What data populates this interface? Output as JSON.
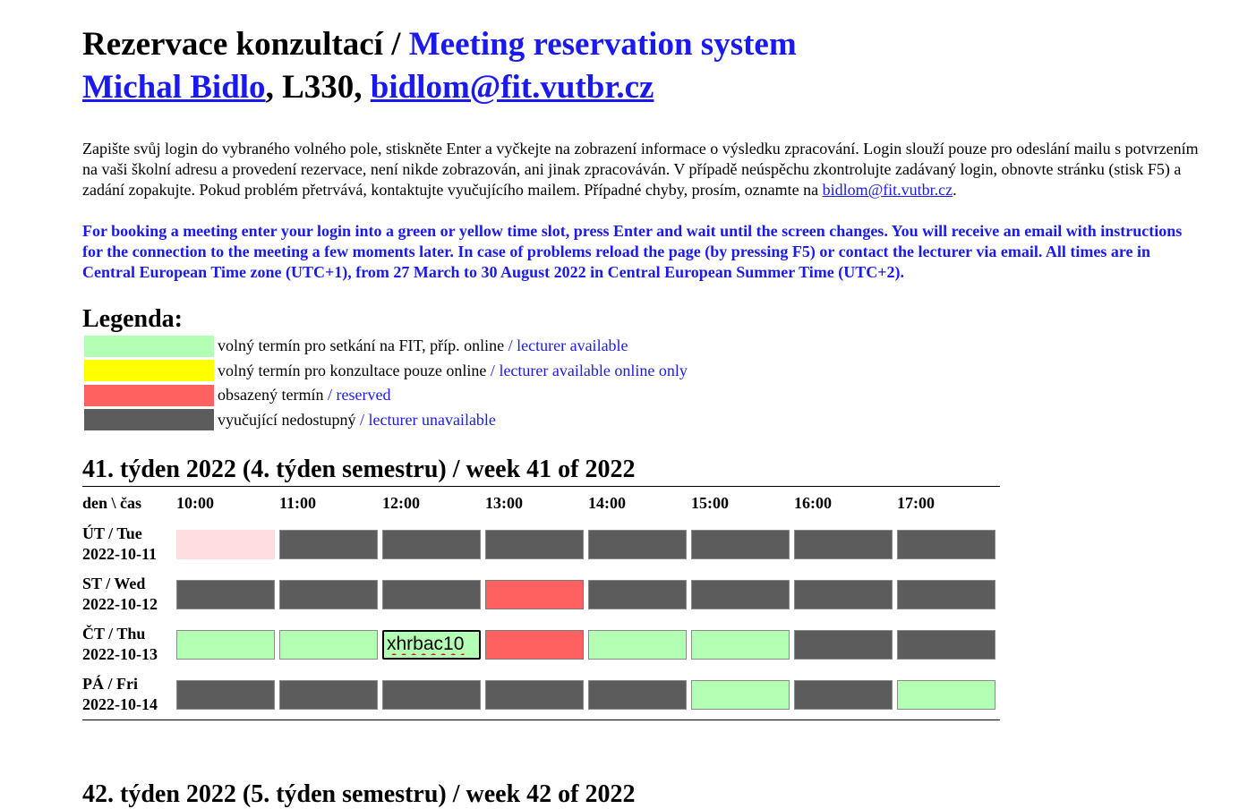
{
  "header": {
    "title_cs": "Rezervace konzultací /",
    "title_en": "Meeting reservation system",
    "name": "Michal Bidlo",
    "office": ", L330, ",
    "email": "bidlom@fit.vutbr.cz"
  },
  "intro": {
    "text_cs": "Zapište svůj login do vybraného volného pole, stiskněte Enter a vyčkejte na zobrazení informace o výsledku zpracování. Login slouží pouze pro odeslání mailu s potvrzením na vaši školní adresu a provedení rezervace, není nikde zobrazován, ani jinak zpracováván. V případě neúspěchu zkontrolujte zadávaný login, obnovte stránku (stisk F5) a zadání zopakujte. Pokud problém přetrvává, kontaktujte vyučujícího mailem. Případné chyby, prosím, oznamte na ",
    "email": "bidlom@fit.vutbr.cz",
    "after_email": ".",
    "text_en": "For booking a meeting enter your login into a green or yellow time slot, press Enter and wait until the screen changes. You will receive an email with instructions for the connection to the meeting a few moments later. In case of problems reload the page (by pressing F5) or contact the lecturer via email. All times are in Central European Time zone (UTC+1), from 27 March to 30 August 2022 in Central European Summer Time (UTC+2)."
  },
  "legend": {
    "title": "Legenda:",
    "items": [
      {
        "cs": "volný termín pro setkání na FIT, příp. online",
        "en": "lecturer available",
        "color": "#b3ffb3"
      },
      {
        "cs": "volný termín pro konzultace pouze online",
        "en": "lecturer available online only",
        "color": "#ffff00"
      },
      {
        "cs": "obsazený termín",
        "en": "reserved",
        "color": "#ff6060"
      },
      {
        "cs": "vyučující nedostupný",
        "en": "lecturer unavailable",
        "color": "#5c5c5c"
      }
    ],
    "separator": " / "
  },
  "week": {
    "title": "41. týden 2022 (4. týden semestru) / week 41 of 2022",
    "corner": "den \\ čas",
    "times": [
      "10:00",
      "11:00",
      "12:00",
      "13:00",
      "14:00",
      "15:00",
      "16:00",
      "17:00"
    ],
    "days": [
      {
        "name": "ÚT / Tue",
        "date": "2022-10-11",
        "slots": [
          "pink",
          "na",
          "na",
          "na",
          "na",
          "na",
          "na",
          "na"
        ]
      },
      {
        "name": "ST / Wed",
        "date": "2022-10-12",
        "slots": [
          "na",
          "na",
          "na",
          "res",
          "na",
          "na",
          "na",
          "na"
        ]
      },
      {
        "name": "ČT / Thu",
        "date": "2022-10-13",
        "slots": [
          "free",
          "free",
          "input",
          "res",
          "free",
          "free",
          "na",
          "na"
        ]
      },
      {
        "name": "PÁ / Fri",
        "date": "2022-10-14",
        "slots": [
          "na",
          "na",
          "na",
          "na",
          "na",
          "free",
          "na",
          "free"
        ]
      }
    ],
    "input_value": "xhrbac10"
  },
  "next_week": {
    "title": "42. týden 2022 (5. týden semestru) / week 42 of 2022"
  }
}
